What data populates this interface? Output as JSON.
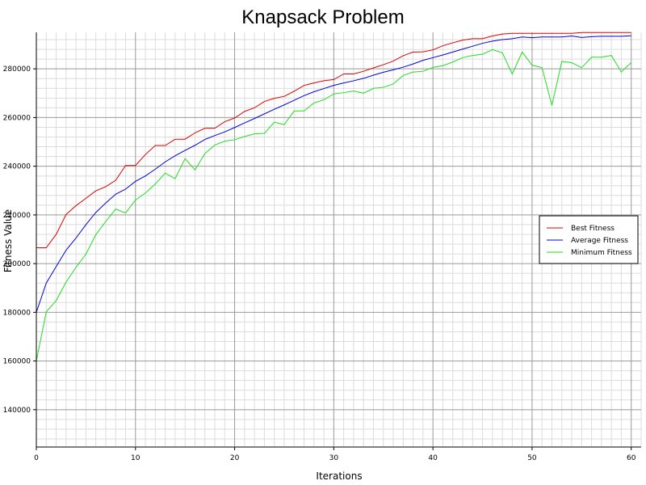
{
  "chart_data": {
    "type": "line",
    "title": "Knapsack Problem",
    "xlabel": "Iterations",
    "ylabel": "Fitness Value",
    "xlim": [
      0,
      61
    ],
    "ylim": [
      125000,
      295000
    ],
    "xticks": [
      0,
      10,
      20,
      30,
      40,
      50,
      60
    ],
    "yticks": [
      140000,
      160000,
      180000,
      200000,
      220000,
      240000,
      260000,
      280000
    ],
    "ytick_labels": [
      "140000",
      "160000",
      "180000",
      "200000",
      "220000",
      "240000",
      "260000",
      "280000"
    ],
    "grid": true,
    "legend_position": "right",
    "x": [
      0,
      1,
      2,
      3,
      4,
      5,
      6,
      7,
      8,
      9,
      10,
      11,
      12,
      13,
      14,
      15,
      16,
      17,
      18,
      19,
      20,
      21,
      22,
      23,
      24,
      25,
      26,
      27,
      28,
      29,
      30,
      31,
      32,
      33,
      34,
      35,
      36,
      37,
      38,
      39,
      40,
      41,
      42,
      43,
      44,
      45,
      46,
      47,
      48,
      49,
      50,
      51,
      52,
      53,
      54,
      55,
      56,
      57,
      58,
      59,
      60
    ],
    "series": [
      {
        "name": "Best Fitness",
        "color": "#dd0000",
        "values": [
          206500,
          206500,
          212000,
          220200,
          223800,
          226800,
          229900,
          231600,
          234200,
          240300,
          240300,
          244800,
          248500,
          248500,
          251100,
          251100,
          253700,
          255600,
          255600,
          258300,
          259800,
          262500,
          264000,
          266600,
          267900,
          268700,
          270800,
          273200,
          274200,
          275100,
          275600,
          277900,
          277900,
          279000,
          280400,
          281700,
          283200,
          285400,
          286900,
          287000,
          287800,
          289500,
          290700,
          291800,
          292400,
          292400,
          293500,
          294300,
          294600,
          294600,
          294600,
          294600,
          294600,
          294600,
          294600,
          294900,
          294900,
          294900,
          294900,
          294900,
          294900
        ]
      },
      {
        "name": "Average Fitness",
        "color": "#0000dd",
        "values": [
          180000,
          192000,
          198800,
          205500,
          210500,
          216000,
          221000,
          224900,
          228500,
          230600,
          233800,
          236000,
          238800,
          241800,
          244300,
          246500,
          248600,
          251000,
          252600,
          254100,
          255900,
          257800,
          259600,
          261500,
          263400,
          265200,
          267100,
          269000,
          270600,
          271900,
          273200,
          274200,
          275100,
          276100,
          277400,
          278600,
          279600,
          280700,
          282000,
          283500,
          284600,
          285700,
          286900,
          288100,
          289300,
          290500,
          291400,
          292000,
          292400,
          293100,
          292800,
          293100,
          293100,
          293100,
          293500,
          292900,
          293200,
          293400,
          293400,
          293400,
          293600
        ]
      },
      {
        "name": "Minimum Fitness",
        "color": "#22dd22",
        "values": [
          160000,
          180200,
          184800,
          192400,
          198500,
          203900,
          211900,
          217300,
          222400,
          220800,
          226100,
          229000,
          232700,
          237200,
          234900,
          243100,
          238500,
          245200,
          248700,
          250300,
          250900,
          252200,
          253300,
          253500,
          258100,
          257100,
          262700,
          262700,
          266000,
          267300,
          269700,
          270200,
          270900,
          270000,
          272000,
          272400,
          273800,
          277300,
          278700,
          279000,
          280600,
          281300,
          282800,
          284600,
          285500,
          286000,
          287900,
          286600,
          277900,
          286900,
          281500,
          280500,
          265000,
          283100,
          282500,
          280500,
          284800,
          284800,
          285500,
          278700,
          282600
        ]
      }
    ]
  }
}
